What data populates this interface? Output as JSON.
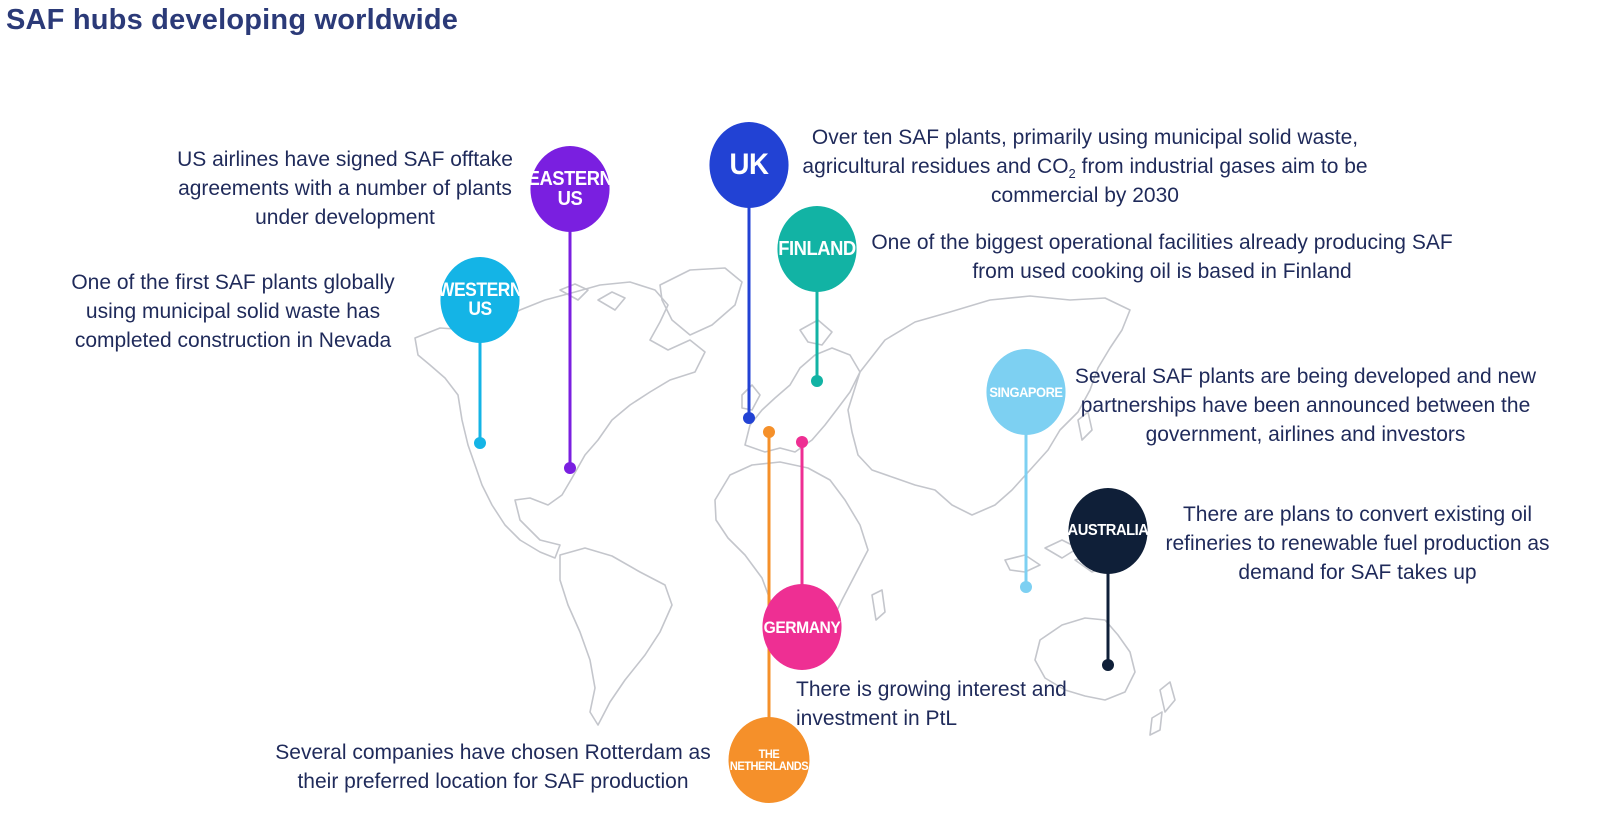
{
  "title": "SAF hubs developing worldwide",
  "colors": {
    "title": "#2b3a78",
    "text": "#1f2a5a",
    "map_outline": "#c4c6cc",
    "western_us": "#14b4e6",
    "eastern_us": "#7a1fe0",
    "uk": "#2242d4",
    "finland": "#12b3a4",
    "singapore": "#7dd0f2",
    "australia": "#0f1f38",
    "germany": "#ee2f93",
    "netherlands": "#f5902a"
  },
  "hubs": {
    "eastern_us": {
      "label": "EASTERN US",
      "line1": "EASTERN",
      "line2": "US",
      "description": "US airlines have signed SAF offtake agreements with a number of plants under development",
      "desc_lines": [
        "US airlines have signed SAF offtake",
        "agreements with a number of plants",
        "under development"
      ]
    },
    "western_us": {
      "label": "WESTERN US",
      "line1": "WESTERN",
      "line2": "US",
      "description": "One of the first SAF plants globally using municipal solid waste has completed construction in Nevada",
      "desc_lines": [
        "One of the first SAF plants globally",
        "using municipal solid waste has",
        "completed construction in Nevada"
      ]
    },
    "uk": {
      "label": "UK",
      "description": "Over ten SAF plants, primarily using municipal solid waste, agricultural residues and CO2 from industrial gases aim to be commercial by 2030",
      "desc_line1": "Over ten SAF plants, primarily using municipal solid waste,",
      "desc_line2a": "agricultural residues and CO",
      "desc_sub": "2",
      "desc_line2b": " from industrial gases aim to be",
      "desc_line3": "commercial by 2030"
    },
    "finland": {
      "label": "FINLAND",
      "description": "One of the biggest operational facilities already producing SAF from used cooking oil is based in Finland",
      "desc_lines": [
        "One of the biggest operational facilities already producing SAF",
        "from used cooking oil is based in Finland"
      ]
    },
    "singapore": {
      "label": "SINGAPORE",
      "description": "Several SAF plants are being developed and new partnerships have been announced between the government, airlines and investors",
      "desc_lines": [
        "Several SAF plants are being developed and new",
        "partnerships have been announced between the",
        "government, airlines and investors"
      ]
    },
    "australia": {
      "label": "AUSTRALIA",
      "description": "There are plans to convert existing oil refineries to renewable fuel production as demand for SAF takes up",
      "desc_lines": [
        "There are plans to convert existing oil",
        "refineries to renewable fuel production as",
        "demand for SAF takes up"
      ]
    },
    "germany": {
      "label": "GERMANY",
      "description": "There is growing interest and investment in PtL",
      "desc_lines": [
        "There is growing interest and",
        "investment in PtL"
      ]
    },
    "netherlands": {
      "label": "THE NETHERLANDS",
      "line1": "THE",
      "line2": "NETHERLANDS",
      "description": "Several companies have chosen Rotterdam as their preferred location for SAF production",
      "desc_lines": [
        "Several companies have chosen Rotterdam as",
        "their preferred location for SAF production"
      ]
    }
  }
}
